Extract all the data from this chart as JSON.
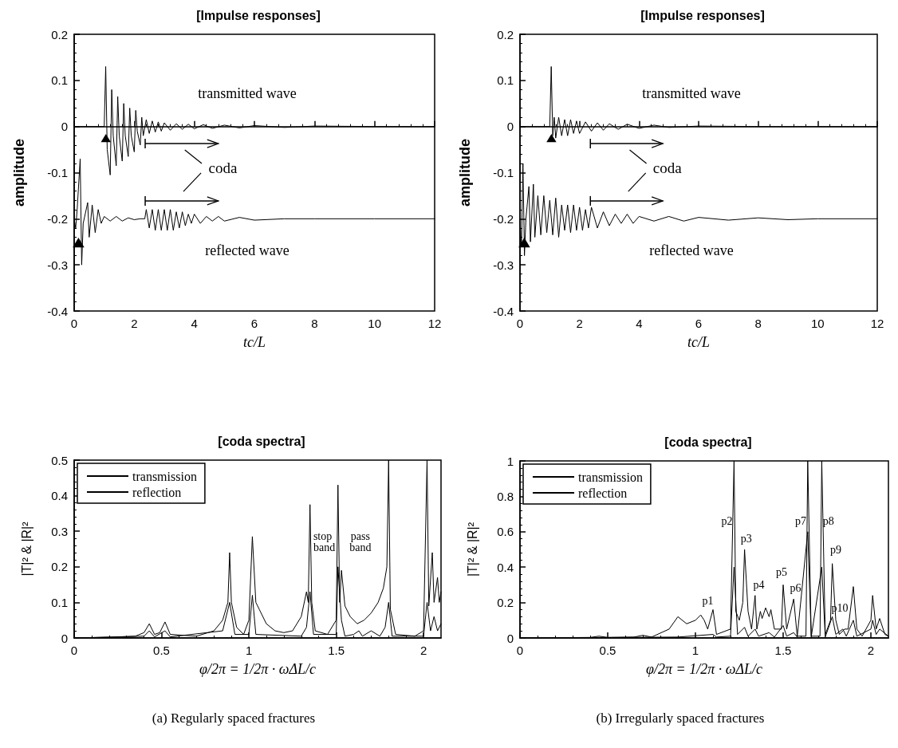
{
  "chart_data": [
    {
      "type": "line",
      "title": "[Impulse responses]",
      "xlabel": "tc/L",
      "ylabel": "amplitude",
      "xlim": [
        0,
        12
      ],
      "xticks": [
        0,
        2,
        4,
        6,
        8,
        10,
        12
      ],
      "ylim": [
        -0.4,
        0.2
      ],
      "yticks": [
        -0.4,
        -0.3,
        -0.2,
        -0.1,
        0,
        0.1,
        0.2
      ],
      "marker": "none",
      "line_style": "solid",
      "series": [
        {
          "name": "transmitted wave",
          "color": "#000000",
          "x": [
            0,
            1.0,
            1.05,
            1.1,
            1.2,
            1.25,
            1.3,
            1.4,
            1.45,
            1.5,
            1.6,
            1.65,
            1.7,
            1.8,
            1.85,
            1.9,
            2.0,
            2.05,
            2.1,
            2.2,
            2.25,
            2.3,
            2.4,
            2.5,
            2.6,
            2.7,
            2.8,
            2.9,
            3.0,
            3.2,
            3.4,
            3.6,
            3.8,
            4.0,
            4.3,
            4.6,
            5.0,
            5.5,
            6.0,
            7.0,
            8.0,
            10.0,
            12.0
          ],
          "values": [
            0,
            0,
            0.13,
            -0.05,
            -0.105,
            0.08,
            -0.02,
            -0.085,
            0.065,
            -0.02,
            -0.075,
            0.05,
            -0.02,
            -0.065,
            0.04,
            -0.02,
            -0.055,
            0.035,
            -0.01,
            -0.04,
            0.02,
            -0.02,
            0.015,
            -0.015,
            0.012,
            -0.012,
            0.01,
            -0.01,
            0.008,
            -0.008,
            0.006,
            -0.006,
            0.005,
            -0.005,
            0.004,
            -0.004,
            0.003,
            -0.003,
            0.002,
            -0.002,
            0.001,
            0,
            0
          ]
        },
        {
          "name": "reflected wave",
          "color": "#000000",
          "x": [
            0,
            0.05,
            0.1,
            0.2,
            0.25,
            0.3,
            0.45,
            0.5,
            0.6,
            0.7,
            0.8,
            0.9,
            1.0,
            1.2,
            1.4,
            1.6,
            1.8,
            2.0,
            2.2,
            2.35,
            2.4,
            2.5,
            2.6,
            2.7,
            2.8,
            2.9,
            3.0,
            3.1,
            3.2,
            3.3,
            3.4,
            3.5,
            3.6,
            3.7,
            3.8,
            3.9,
            4.0,
            4.2,
            4.4,
            4.6,
            4.8,
            5.0,
            5.5,
            6.0,
            7.0,
            8.0,
            10.0,
            12.0
          ],
          "values": [
            -0.2,
            -0.22,
            -0.18,
            -0.07,
            -0.3,
            -0.21,
            -0.165,
            -0.24,
            -0.17,
            -0.23,
            -0.18,
            -0.21,
            -0.195,
            -0.205,
            -0.195,
            -0.205,
            -0.198,
            -0.202,
            -0.2,
            -0.2,
            -0.18,
            -0.22,
            -0.18,
            -0.225,
            -0.18,
            -0.225,
            -0.18,
            -0.225,
            -0.18,
            -0.225,
            -0.185,
            -0.22,
            -0.185,
            -0.215,
            -0.19,
            -0.21,
            -0.19,
            -0.21,
            -0.195,
            -0.205,
            -0.195,
            -0.205,
            -0.197,
            -0.203,
            -0.2,
            -0.2,
            -0.2,
            -0.2
          ]
        }
      ],
      "annotations": [
        "coda"
      ]
    },
    {
      "type": "line",
      "title": "[Impulse responses]",
      "xlabel": "tc/L",
      "ylabel": "amplitude",
      "xlim": [
        0,
        12
      ],
      "xticks": [
        0,
        2,
        4,
        6,
        8,
        10,
        12
      ],
      "ylim": [
        -0.4,
        0.2
      ],
      "yticks": [
        -0.4,
        -0.3,
        -0.2,
        -0.1,
        0,
        0.1,
        0.2
      ],
      "marker": "none",
      "line_style": "solid",
      "series": [
        {
          "name": "transmitted wave",
          "color": "#000000",
          "x": [
            0,
            1.0,
            1.05,
            1.1,
            1.15,
            1.2,
            1.3,
            1.4,
            1.5,
            1.6,
            1.7,
            1.8,
            1.9,
            2.0,
            2.2,
            2.4,
            2.6,
            2.8,
            3.0,
            3.3,
            3.6,
            4.0,
            4.5,
            5.0,
            6.0,
            8.0,
            10.0,
            12.0
          ],
          "values": [
            0,
            0,
            0.13,
            -0.02,
            0.02,
            -0.025,
            0.02,
            -0.02,
            0.015,
            -0.02,
            0.015,
            -0.015,
            0.012,
            -0.015,
            0.01,
            -0.01,
            0.008,
            -0.008,
            0.006,
            -0.006,
            0.005,
            -0.004,
            0.003,
            -0.002,
            0.001,
            0,
            0,
            0
          ]
        },
        {
          "name": "reflected wave",
          "color": "#000000",
          "x": [
            0,
            0.05,
            0.1,
            0.15,
            0.2,
            0.3,
            0.35,
            0.45,
            0.5,
            0.6,
            0.7,
            0.8,
            0.9,
            1.0,
            1.1,
            1.2,
            1.3,
            1.4,
            1.5,
            1.6,
            1.7,
            1.8,
            1.9,
            2.0,
            2.1,
            2.2,
            2.3,
            2.4,
            2.6,
            2.8,
            3.0,
            3.2,
            3.4,
            3.6,
            3.8,
            4.0,
            4.5,
            5.0,
            5.5,
            6.0,
            7.0,
            8.0,
            9.0,
            10.0,
            12.0
          ],
          "values": [
            -0.2,
            -0.26,
            -0.08,
            -0.28,
            -0.2,
            -0.13,
            -0.25,
            -0.125,
            -0.24,
            -0.15,
            -0.235,
            -0.15,
            -0.23,
            -0.16,
            -0.235,
            -0.155,
            -0.24,
            -0.17,
            -0.225,
            -0.17,
            -0.23,
            -0.17,
            -0.225,
            -0.175,
            -0.225,
            -0.18,
            -0.22,
            -0.175,
            -0.22,
            -0.185,
            -0.215,
            -0.19,
            -0.21,
            -0.19,
            -0.21,
            -0.195,
            -0.205,
            -0.195,
            -0.205,
            -0.197,
            -0.203,
            -0.198,
            -0.202,
            -0.2,
            -0.2
          ]
        }
      ],
      "annotations": [
        "coda"
      ]
    },
    {
      "type": "line",
      "title": "[coda spectra]",
      "xlabel": "φ/2π = 1/2π · ωΔL/c",
      "ylabel": "|T|² & |R|²",
      "xlim": [
        0,
        2.1
      ],
      "xticks": [
        0,
        0.5,
        1,
        1.5,
        2
      ],
      "ylim": [
        0,
        0.5
      ],
      "yticks": [
        0,
        0.1,
        0.2,
        0.3,
        0.4,
        0.5
      ],
      "marker": "none",
      "line_style": "solid",
      "legend": "top left",
      "series": [
        {
          "name": "transmission",
          "color": "#000000",
          "x": [
            0,
            0.2,
            0.35,
            0.4,
            0.43,
            0.46,
            0.49,
            0.52,
            0.55,
            0.7,
            0.8,
            0.85,
            0.88,
            0.89,
            0.9,
            0.93,
            0.97,
            1.0,
            1.02,
            1.04,
            1.06,
            1.1,
            1.15,
            1.2,
            1.25,
            1.3,
            1.33,
            1.34,
            1.35,
            1.36,
            1.38,
            1.45,
            1.5,
            1.51,
            1.52,
            1.53,
            1.55,
            1.58,
            1.62,
            1.66,
            1.7,
            1.74,
            1.77,
            1.79,
            1.8,
            1.81,
            1.84,
            1.95,
            2.0,
            2.02,
            2.03,
            2.05,
            2.06,
            2.08,
            2.09,
            2.1
          ],
          "values": [
            0,
            0.002,
            0.005,
            0.015,
            0.04,
            0.01,
            0.015,
            0.045,
            0.01,
            0.005,
            0.02,
            0.05,
            0.1,
            0.24,
            0.1,
            0.03,
            0.01,
            0.05,
            0.285,
            0.1,
            0.08,
            0.04,
            0.02,
            0.015,
            0.02,
            0.06,
            0.13,
            0.1,
            0.375,
            0.1,
            0.02,
            0.01,
            0.05,
            0.43,
            0.1,
            0.19,
            0.09,
            0.06,
            0.04,
            0.05,
            0.07,
            0.1,
            0.14,
            0.2,
            0.5,
            0.08,
            0.01,
            0.005,
            0.02,
            0.5,
            0.09,
            0.24,
            0.1,
            0.17,
            0.1,
            0.13
          ]
        },
        {
          "name": "reflection",
          "color": "#000000",
          "x": [
            0,
            0.4,
            0.43,
            0.46,
            0.52,
            0.55,
            0.85,
            0.89,
            0.92,
            1.0,
            1.02,
            1.04,
            1.3,
            1.33,
            1.35,
            1.37,
            1.5,
            1.51,
            1.53,
            1.55,
            1.6,
            1.63,
            1.65,
            1.7,
            1.75,
            1.78,
            1.8,
            1.82,
            2.0,
            2.02,
            2.04,
            2.06,
            2.08,
            2.1
          ],
          "values": [
            0,
            0.005,
            0.02,
            0.003,
            0.02,
            0.003,
            0.02,
            0.1,
            0.01,
            0.01,
            0.12,
            0.01,
            0.005,
            0.03,
            0.13,
            0.01,
            0.01,
            0.2,
            0.05,
            0.005,
            0.01,
            0.02,
            0.005,
            0.02,
            0.005,
            0.03,
            0.1,
            0.005,
            0.005,
            0.1,
            0.02,
            0.06,
            0.02,
            0.04
          ]
        }
      ],
      "annotations": [
        "stop\nband",
        "pass\nband",
        "(a) Regularly spaced fractures"
      ]
    },
    {
      "type": "line",
      "title": "[coda spectra]",
      "xlabel": "φ/2π = 1/2π · ωΔL/c",
      "ylabel": "|T|² & |R|²",
      "xlim": [
        0,
        2.1
      ],
      "xticks": [
        0,
        0.5,
        1,
        1.5,
        2
      ],
      "ylim": [
        0,
        1
      ],
      "yticks": [
        0,
        0.2,
        0.4,
        0.6,
        0.8,
        1
      ],
      "marker": "none",
      "line_style": "solid",
      "legend": "top left",
      "series": [
        {
          "name": "transmission",
          "color": "#000000",
          "x": [
            0,
            0.4,
            0.45,
            0.5,
            0.65,
            0.7,
            0.75,
            0.85,
            0.9,
            0.95,
            1.0,
            1.03,
            1.05,
            1.07,
            1.1,
            1.12,
            1.2,
            1.22,
            1.23,
            1.25,
            1.27,
            1.28,
            1.3,
            1.32,
            1.34,
            1.35,
            1.37,
            1.38,
            1.4,
            1.42,
            1.43,
            1.45,
            1.49,
            1.5,
            1.52,
            1.56,
            1.58,
            1.63,
            1.64,
            1.66,
            1.71,
            1.72,
            1.74,
            1.77,
            1.78,
            1.8,
            1.82,
            1.85,
            1.87,
            1.9,
            1.92,
            1.95,
            2.0,
            2.01,
            2.03,
            2.05,
            2.08,
            2.1
          ],
          "values": [
            0,
            0.003,
            0.01,
            0.003,
            0.005,
            0.015,
            0.005,
            0.05,
            0.12,
            0.08,
            0.1,
            0.13,
            0.1,
            0.05,
            0.16,
            0.02,
            0.05,
            1.0,
            0.15,
            0.1,
            0.2,
            0.5,
            0.15,
            0.05,
            0.24,
            0.05,
            0.15,
            0.11,
            0.17,
            0.12,
            0.16,
            0.05,
            0.05,
            0.3,
            0.05,
            0.22,
            0.01,
            0.01,
            1.0,
            0.01,
            0.01,
            1.0,
            0.02,
            0.1,
            0.42,
            0.1,
            0.02,
            0.05,
            0.05,
            0.29,
            0.05,
            0.01,
            0.1,
            0.24,
            0.05,
            0.11,
            0.02,
            0.01
          ]
        },
        {
          "name": "reflection",
          "color": "#000000",
          "x": [
            0,
            0.9,
            1.1,
            1.12,
            1.2,
            1.22,
            1.24,
            1.28,
            1.3,
            1.34,
            1.36,
            1.42,
            1.45,
            1.5,
            1.52,
            1.56,
            1.58,
            1.64,
            1.66,
            1.72,
            1.74,
            1.78,
            1.8,
            1.84,
            1.86,
            1.9,
            1.92,
            2.0,
            2.01,
            2.03,
            2.05,
            2.1
          ],
          "values": [
            0,
            0.005,
            0.02,
            0.005,
            0.01,
            0.4,
            0.02,
            0.06,
            0.01,
            0.05,
            0.01,
            0.03,
            0.005,
            0.07,
            0.01,
            0.03,
            0.005,
            0.6,
            0.005,
            0.4,
            0.005,
            0.12,
            0.02,
            0.05,
            0.01,
            0.1,
            0.01,
            0.05,
            0.1,
            0.02,
            0.05,
            0.01
          ]
        }
      ],
      "annotations": [
        "p1",
        "p2",
        "p3",
        "p4",
        "p5",
        "p6",
        "p7",
        "p8",
        "p9",
        "p10",
        "(b) Irregularly spaced fractures"
      ]
    }
  ]
}
